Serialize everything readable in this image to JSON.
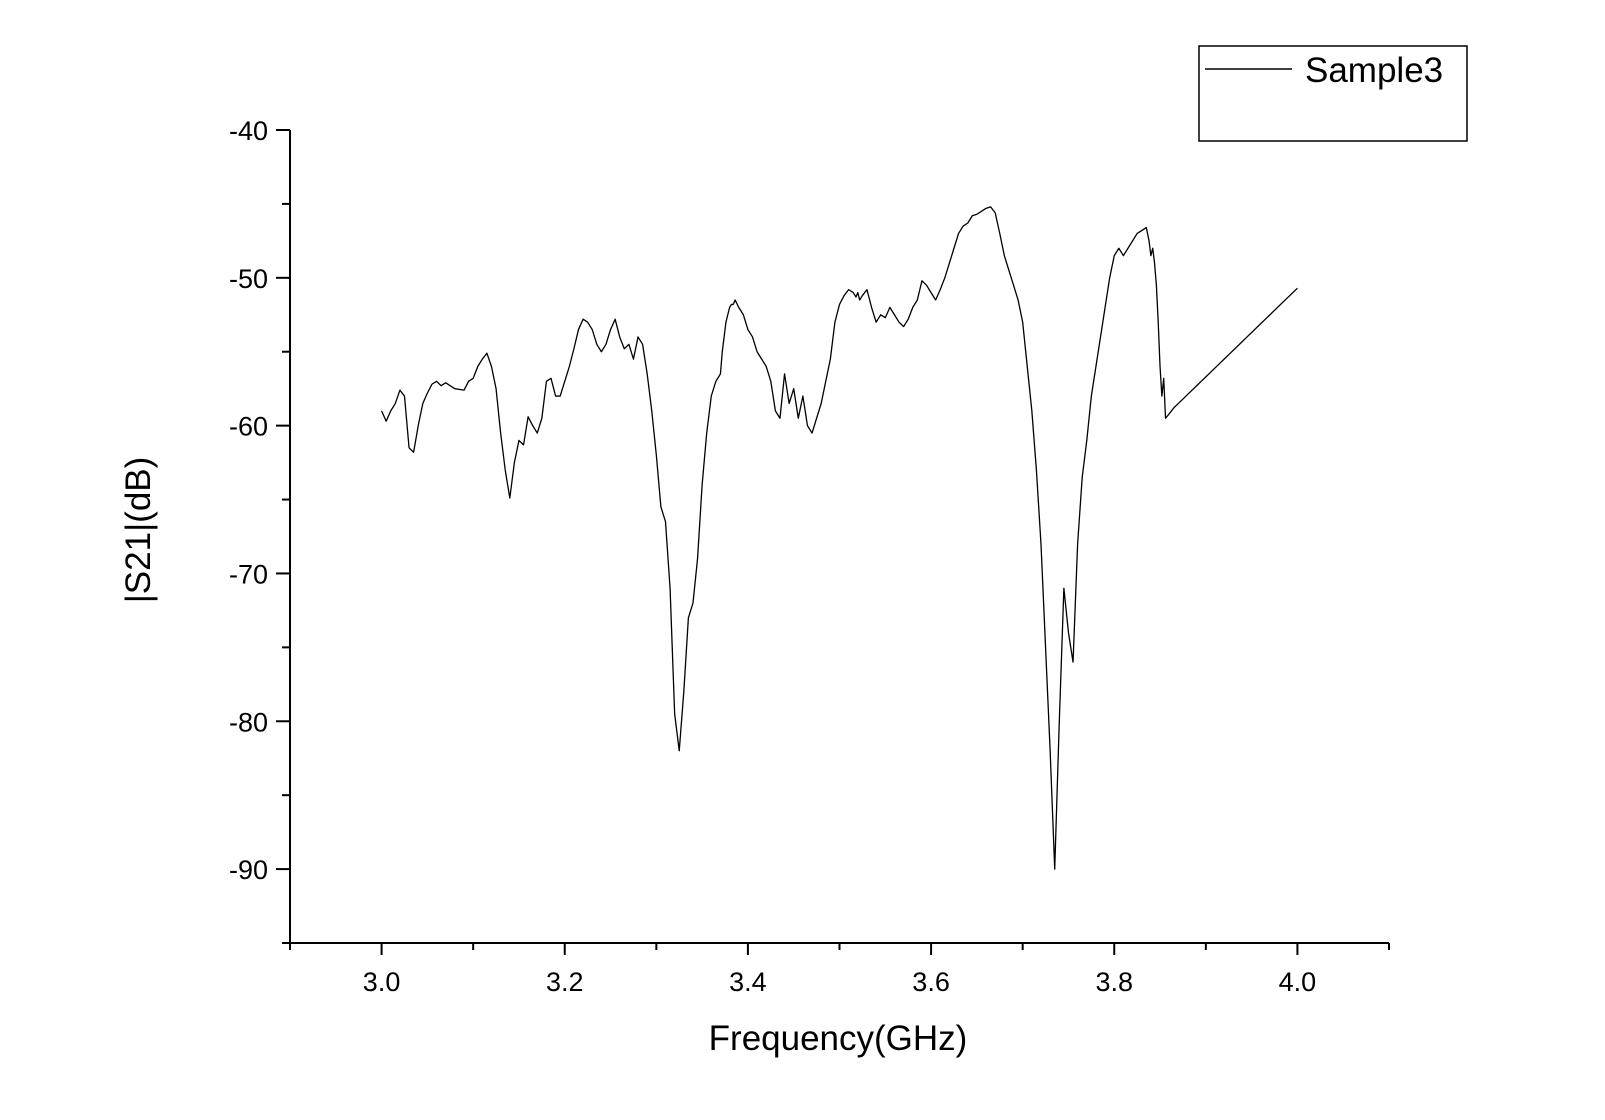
{
  "chart_data": {
    "type": "line",
    "title": "",
    "xlabel": "Frequency(GHz)",
    "ylabel": "|S21|(dB)",
    "xlim": [
      2.9,
      4.1
    ],
    "ylim": [
      -95,
      -40
    ],
    "x_ticks": [
      3.0,
      3.2,
      3.4,
      3.6,
      3.8,
      4.0
    ],
    "x_tick_labels": [
      "3.0",
      "3.2",
      "3.4",
      "3.6",
      "3.8",
      "4.0"
    ],
    "x_minor_step": 0.1,
    "y_ticks": [
      -90,
      -80,
      -70,
      -60,
      -50,
      -40
    ],
    "y_tick_labels": [
      "-90",
      "-80",
      "-70",
      "-60",
      "-50",
      "-40"
    ],
    "y_minor_step": 5,
    "grid": false,
    "legend_position": "top-right",
    "line_color": "#000000",
    "series": [
      {
        "name": "Sample3",
        "x": [
          3.0,
          3.005,
          3.01,
          3.015,
          3.02,
          3.025,
          3.03,
          3.035,
          3.04,
          3.045,
          3.05,
          3.055,
          3.06,
          3.065,
          3.07,
          3.08,
          3.09,
          3.095,
          3.1,
          3.105,
          3.11,
          3.115,
          3.12,
          3.125,
          3.13,
          3.135,
          3.14,
          3.145,
          3.15,
          3.155,
          3.16,
          3.165,
          3.17,
          3.175,
          3.18,
          3.185,
          3.19,
          3.195,
          3.2,
          3.205,
          3.21,
          3.215,
          3.22,
          3.225,
          3.23,
          3.235,
          3.24,
          3.245,
          3.25,
          3.255,
          3.26,
          3.265,
          3.27,
          3.275,
          3.28,
          3.285,
          3.29,
          3.295,
          3.3,
          3.305,
          3.31,
          3.315,
          3.32,
          3.325,
          3.33,
          3.335,
          3.34,
          3.345,
          3.35,
          3.355,
          3.36,
          3.365,
          3.37,
          3.372,
          3.374,
          3.376,
          3.378,
          3.38,
          3.382,
          3.384,
          3.386,
          3.39,
          3.395,
          3.4,
          3.405,
          3.41,
          3.415,
          3.42,
          3.425,
          3.43,
          3.435,
          3.44,
          3.445,
          3.45,
          3.455,
          3.46,
          3.465,
          3.47,
          3.475,
          3.48,
          3.485,
          3.49,
          3.495,
          3.5,
          3.505,
          3.51,
          3.515,
          3.518,
          3.52,
          3.522,
          3.525,
          3.53,
          3.535,
          3.54,
          3.545,
          3.55,
          3.555,
          3.56,
          3.565,
          3.57,
          3.575,
          3.58,
          3.585,
          3.59,
          3.595,
          3.6,
          3.605,
          3.61,
          3.615,
          3.62,
          3.625,
          3.63,
          3.635,
          3.64,
          3.645,
          3.65,
          3.655,
          3.66,
          3.665,
          3.67,
          3.675,
          3.68,
          3.685,
          3.69,
          3.695,
          3.7,
          3.705,
          3.71,
          3.715,
          3.72,
          3.725,
          3.73,
          3.735,
          3.74,
          3.745,
          3.75,
          3.755,
          3.76,
          3.765,
          3.77,
          3.775,
          3.78,
          3.785,
          3.79,
          3.795,
          3.8,
          3.805,
          3.81,
          3.815,
          3.82,
          3.825,
          3.83,
          3.835,
          3.838,
          3.84,
          3.842,
          3.844,
          3.846,
          3.848,
          3.85,
          3.852,
          3.854,
          3.856,
          3.86,
          3.865,
          3.87,
          3.875,
          3.88,
          3.885,
          3.89,
          3.895,
          3.9,
          3.905,
          3.91,
          3.915,
          3.92,
          3.925,
          3.93,
          3.935,
          3.94,
          3.945,
          3.95,
          3.955,
          3.96,
          3.965,
          3.97,
          3.975,
          3.98,
          3.985,
          3.99,
          3.995,
          4.0
        ],
        "y": [
          -59.0,
          -59.7,
          -59.0,
          -58.5,
          -57.6,
          -58.0,
          -61.5,
          -61.8,
          -60.0,
          -58.5,
          -57.8,
          -57.2,
          -57.0,
          -57.3,
          -57.1,
          -57.5,
          -57.6,
          -57.0,
          -56.8,
          -56.0,
          -55.5,
          -55.1,
          -56.0,
          -57.5,
          -60.5,
          -63.0,
          -64.9,
          -62.5,
          -61.0,
          -61.3,
          -59.4,
          -60.0,
          -60.5,
          -59.5,
          -57.0,
          -56.8,
          -58.0,
          -58.0,
          -57.0,
          -56.0,
          -54.8,
          -53.5,
          -52.8,
          -53.0,
          -53.5,
          -54.5,
          -55.0,
          -54.5,
          -53.5,
          -52.8,
          -54.0,
          -54.8,
          -54.5,
          -55.5,
          -54.0,
          -54.5,
          -56.5,
          -59.0,
          -62.0,
          -65.5,
          -66.5,
          -71.0,
          -79.5,
          -82.0,
          -78.0,
          -73.0,
          -72.0,
          -69.0,
          -64.0,
          -60.5,
          -58.0,
          -57.0,
          -56.5,
          -55.0,
          -54.0,
          -53.0,
          -52.5,
          -52.0,
          -51.8,
          -51.8,
          -51.5,
          -52.0,
          -52.5,
          -53.5,
          -54.0,
          -55.0,
          -55.5,
          -56.0,
          -57.0,
          -59.0,
          -59.5,
          -56.5,
          -58.5,
          -57.5,
          -59.5,
          -58.0,
          -60.0,
          -60.5,
          -59.5,
          -58.5,
          -57.0,
          -55.5,
          -53.0,
          -51.8,
          -51.2,
          -50.8,
          -51.0,
          -51.3,
          -51.0,
          -51.5,
          -51.2,
          -50.8,
          -52.0,
          -53.0,
          -52.5,
          -52.7,
          -52.0,
          -52.5,
          -53.0,
          -53.3,
          -52.8,
          -52.0,
          -51.5,
          -50.2,
          -50.5,
          -51.0,
          -51.5,
          -50.8,
          -50.0,
          -49.0,
          -48.0,
          -47.0,
          -46.5,
          -46.3,
          -45.8,
          -45.7,
          -45.5,
          -45.3,
          -45.2,
          -45.6,
          -47.0,
          -48.5,
          -49.5,
          -50.5,
          -51.5,
          -53.0,
          -56.0,
          -59.0,
          -63.0,
          -68.0,
          -75.0,
          -82.0,
          -90.0,
          -80.0,
          -71.0,
          -74.0,
          -76.0,
          -68.0,
          -63.5,
          -61.0,
          -58.0,
          -56.0,
          -54.0,
          -52.0,
          -50.0,
          -48.5,
          -48.0,
          -48.5,
          -48.0,
          -47.5,
          -47.0,
          -46.8,
          -46.6,
          -47.5,
          -48.5,
          -48.0,
          -49.0,
          -50.5,
          -53.0,
          -56.0,
          -58.0,
          -56.8,
          -59.5,
          -59.2,
          -58.8,
          -58.5,
          -58.2,
          -57.9,
          -57.6,
          -57.3,
          -57.0,
          -56.7,
          -56.4,
          -56.1,
          -55.8,
          -55.5,
          -55.2,
          -54.9,
          -54.6,
          -54.3,
          -54.0,
          -53.7,
          -53.4,
          -53.1,
          -52.8,
          -52.5,
          -52.2,
          -51.9,
          -51.6,
          -51.3,
          -51.0,
          -50.7
        ],
        "y_corrected_tail_note_excluded": null
      }
    ]
  }
}
